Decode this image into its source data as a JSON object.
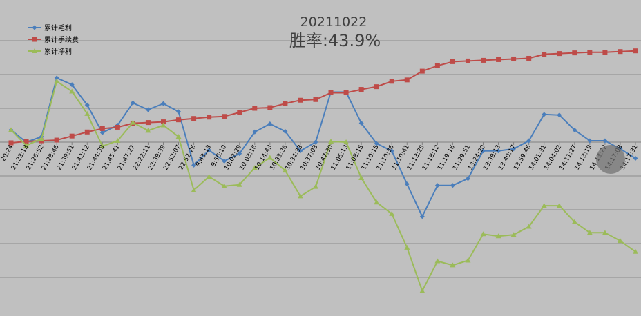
{
  "chart_data": {
    "type": "line",
    "title": "20211022",
    "subtitle": "胜率:43.9%",
    "legend_position": "top-left",
    "grid": true,
    "ylim": [
      -100,
      360
    ],
    "gridlines": [
      0,
      50,
      100,
      150,
      200,
      250,
      300,
      350
    ],
    "categories": [
      "20:24",
      "21:23:13",
      "21:26:52",
      "21:28:46",
      "21:39:51",
      "21:42:12",
      "21:44:39",
      "21:45:41",
      "21:47:27",
      "22:22:11",
      "22:39:39",
      "22:52:07",
      "22:52:26",
      "9:43:13",
      "9:56:10",
      "10:02:29",
      "10:03:16",
      "10:14:43",
      "10:33:26",
      "10:34:33",
      "10:37:03",
      "10:47:30",
      "11:05:13",
      "11:08:15",
      "11:10:15",
      "11:10:36",
      "11:10:41",
      "11:13:25",
      "11:18:12",
      "11:19:16",
      "11:29:51",
      "13:24:20",
      "13:39:13",
      "13:40:17",
      "13:59:46",
      "14:01:31",
      "14:04:02",
      "14:11:27",
      "14:13:19",
      "14:13:22",
      "14:17:08",
      "14:17:31"
    ],
    "series": [
      {
        "name": "累计毛利",
        "color": "#4a7ebb",
        "marker": "diamond",
        "values": [
          218,
          200,
          208,
          295,
          285,
          255,
          214,
          225,
          258,
          248,
          257,
          245,
          166,
          188,
          172,
          183,
          215,
          227,
          216,
          187,
          200,
          274,
          274,
          228,
          198,
          187,
          138,
          90,
          136,
          136,
          146,
          187,
          187,
          190,
          202,
          241,
          240,
          218,
          202,
          202,
          190,
          176
        ]
      },
      {
        "name": "累计手续费",
        "color": "#be4b48",
        "marker": "square",
        "values": [
          199,
          201,
          202,
          203,
          209,
          215,
          220,
          222,
          228,
          229,
          230,
          233,
          235,
          237,
          238,
          244,
          250,
          251,
          257,
          262,
          263,
          273,
          273,
          278,
          282,
          290,
          292,
          305,
          313,
          319,
          320,
          321,
          322,
          323,
          324,
          330,
          331,
          332,
          333,
          333,
          334,
          335
        ]
      },
      {
        "name": "累计净利",
        "color": "#9bbb59",
        "marker": "triangle",
        "values": [
          218,
          195,
          205,
          290,
          275,
          242,
          194,
          202,
          229,
          217,
          225,
          208,
          129,
          149,
          135,
          137,
          162,
          177,
          158,
          120,
          134,
          201,
          200,
          147,
          111,
          94,
          44,
          -20,
          24,
          18,
          25,
          64,
          61,
          63,
          75,
          106,
          106,
          82,
          66,
          66,
          54,
          38
        ]
      }
    ]
  }
}
